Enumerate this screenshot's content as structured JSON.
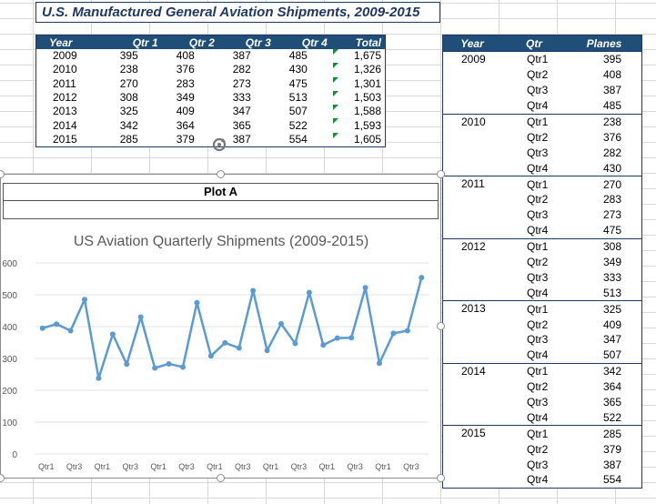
{
  "sheet_title": "U.S. Manufactured General Aviation Shipments, 2009-2015",
  "table1": {
    "headers": [
      "Year",
      "Qtr 1",
      "Qtr 2",
      "Qtr 3",
      "Qtr 4",
      "Total"
    ],
    "rows": [
      [
        "2009",
        "395",
        "408",
        "387",
        "485",
        "1,675"
      ],
      [
        "2010",
        "238",
        "376",
        "282",
        "430",
        "1,326"
      ],
      [
        "2011",
        "270",
        "283",
        "273",
        "475",
        "1,301"
      ],
      [
        "2012",
        "308",
        "349",
        "333",
        "513",
        "1,503"
      ],
      [
        "2013",
        "325",
        "409",
        "347",
        "507",
        "1,588"
      ],
      [
        "2014",
        "342",
        "364",
        "365",
        "522",
        "1,593"
      ],
      [
        "2015",
        "285",
        "379",
        "387",
        "554",
        "1,605"
      ]
    ]
  },
  "table2": {
    "headers": [
      "Year",
      "Qtr",
      "Planes"
    ],
    "groups": [
      {
        "year": "2009",
        "rows": [
          [
            "Qtr1",
            "395"
          ],
          [
            "Qtr2",
            "408"
          ],
          [
            "Qtr3",
            "387"
          ],
          [
            "Qtr4",
            "485"
          ]
        ]
      },
      {
        "year": "2010",
        "rows": [
          [
            "Qtr1",
            "238"
          ],
          [
            "Qtr2",
            "376"
          ],
          [
            "Qtr3",
            "282"
          ],
          [
            "Qtr4",
            "430"
          ]
        ]
      },
      {
        "year": "2011",
        "rows": [
          [
            "Qtr1",
            "270"
          ],
          [
            "Qtr2",
            "283"
          ],
          [
            "Qtr3",
            "273"
          ],
          [
            "Qtr4",
            "475"
          ]
        ]
      },
      {
        "year": "2012",
        "rows": [
          [
            "Qtr1",
            "308"
          ],
          [
            "Qtr2",
            "349"
          ],
          [
            "Qtr3",
            "333"
          ],
          [
            "Qtr4",
            "513"
          ]
        ]
      },
      {
        "year": "2013",
        "rows": [
          [
            "Qtr1",
            "325"
          ],
          [
            "Qtr2",
            "409"
          ],
          [
            "Qtr3",
            "347"
          ],
          [
            "Qtr4",
            "507"
          ]
        ]
      },
      {
        "year": "2014",
        "rows": [
          [
            "Qtr1",
            "342"
          ],
          [
            "Qtr2",
            "364"
          ],
          [
            "Qtr3",
            "365"
          ],
          [
            "Qtr4",
            "522"
          ]
        ]
      },
      {
        "year": "2015",
        "rows": [
          [
            "Qtr1",
            "285"
          ],
          [
            "Qtr2",
            "379"
          ],
          [
            "Qtr3",
            "387"
          ],
          [
            "Qtr4",
            "554"
          ]
        ]
      }
    ]
  },
  "chart": {
    "plot_label": "Plot A"
  },
  "chart_data": {
    "type": "line",
    "title": "US Aviation Quarterly Shipments (2009-2015)",
    "xlabel": "",
    "ylabel": "",
    "ylim": [
      0,
      600
    ],
    "yticks": [
      0,
      100,
      200,
      300,
      400,
      500,
      600
    ],
    "x_tick_labels": [
      "Qtr1",
      "Qtr3",
      "Qtr1",
      "Qtr3",
      "Qtr1",
      "Qtr3",
      "Qtr1",
      "Qtr3",
      "Qtr1",
      "Qtr3",
      "Qtr1",
      "Qtr3",
      "Qtr1",
      "Qtr3"
    ],
    "categories": [
      "Qtr1",
      "Qtr2",
      "Qtr3",
      "Qtr4",
      "Qtr1",
      "Qtr2",
      "Qtr3",
      "Qtr4",
      "Qtr1",
      "Qtr2",
      "Qtr3",
      "Qtr4",
      "Qtr1",
      "Qtr2",
      "Qtr3",
      "Qtr4",
      "Qtr1",
      "Qtr2",
      "Qtr3",
      "Qtr4",
      "Qtr1",
      "Qtr2",
      "Qtr3",
      "Qtr4",
      "Qtr1",
      "Qtr2",
      "Qtr3",
      "Qtr4"
    ],
    "series": [
      {
        "name": "Planes",
        "values": [
          395,
          408,
          387,
          485,
          238,
          376,
          282,
          430,
          270,
          283,
          273,
          475,
          308,
          349,
          333,
          513,
          325,
          409,
          347,
          507,
          342,
          364,
          365,
          522,
          285,
          379,
          387,
          554
        ]
      }
    ],
    "color": "#5b9bd5",
    "grid": true,
    "legend": "none"
  }
}
